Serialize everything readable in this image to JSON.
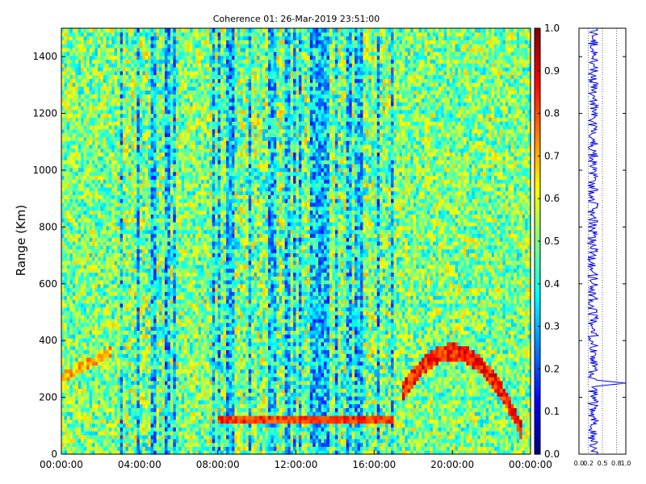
{
  "chart_data": {
    "type": "heatmap",
    "title": "Coherence 01: 26-Mar-2019 23:51:00",
    "ylabel": "Range (Km)",
    "xlabel": "",
    "x_ticks": [
      "00:00:00",
      "04:00:00",
      "08:00:00",
      "12:00:00",
      "16:00:00",
      "20:00:00",
      "00:00:00"
    ],
    "x_range_hours": [
      0,
      24
    ],
    "y_ticks": [
      0,
      200,
      400,
      600,
      800,
      1000,
      1200,
      1400
    ],
    "ylim": [
      0,
      1500
    ],
    "colorbar": {
      "colormap": "jet",
      "range": [
        0.0,
        1.0
      ],
      "ticks": [
        "0.0",
        "0.1",
        "0.2",
        "0.3",
        "0.4",
        "0.5",
        "0.6",
        "0.7",
        "0.8",
        "0.9",
        "1.0"
      ]
    },
    "features": [
      {
        "name": "low-range band",
        "hours": [
          8.0,
          17.0
        ],
        "range_km": [
          115,
          135
        ],
        "coherence": 0.9
      },
      {
        "name": "evening arc",
        "hours": [
          17.5,
          23.5
        ],
        "peak_hour": 20.0,
        "peak_range_km": 360,
        "coherence": 0.95
      },
      {
        "name": "dawn trace",
        "hours": [
          0.0,
          2.5
        ],
        "range_km": [
          270,
          360
        ],
        "coherence": 0.8
      }
    ],
    "profile": {
      "xlim": [
        0.0,
        1.0
      ],
      "x_ticks": [
        "0.0",
        "0.2",
        "0.5",
        "0.8",
        "1.0"
      ],
      "ylim": [
        0,
        1500
      ],
      "baseline": 0.3,
      "peak_range_km": 250,
      "peak_value": 1.0,
      "line_color": "#0000ee"
    }
  }
}
